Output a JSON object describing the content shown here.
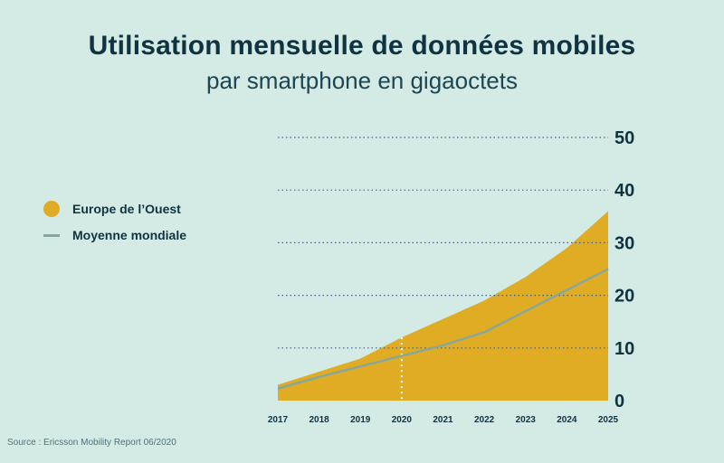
{
  "header": {
    "title": "Utilisation mensuelle de données mobiles",
    "subtitle": "par smartphone en gigaoctets"
  },
  "source": "Source : Ericsson Mobility Report 06/2020",
  "colors": {
    "area": "#e0ac24",
    "line": "#86a89c",
    "grid": "#3f5f8a",
    "text": "#0f3340"
  },
  "chart_data": {
    "type": "area",
    "title": "Utilisation mensuelle de données mobiles",
    "subtitle": "par smartphone en gigaoctets",
    "xlabel": "",
    "ylabel": "",
    "x": [
      "2017",
      "2018",
      "2019",
      "2020",
      "2021",
      "2022",
      "2023",
      "2024",
      "2025"
    ],
    "ylim": [
      0,
      50
    ],
    "yticks": [
      0,
      10,
      20,
      30,
      40,
      50
    ],
    "grid": true,
    "legend": "left",
    "series": [
      {
        "name": "Europe de l’Ouest",
        "type": "area",
        "values": [
          3,
          5.5,
          8,
          12,
          15.5,
          19,
          23.5,
          29,
          36
        ]
      },
      {
        "name": "Moyenne mondiale",
        "type": "line",
        "values": [
          2.3,
          4.5,
          6.5,
          8.5,
          10.5,
          13,
          17,
          21,
          25
        ]
      }
    ],
    "annotations": [
      {
        "type": "dotted-vertical-line",
        "x": "2020"
      }
    ]
  }
}
